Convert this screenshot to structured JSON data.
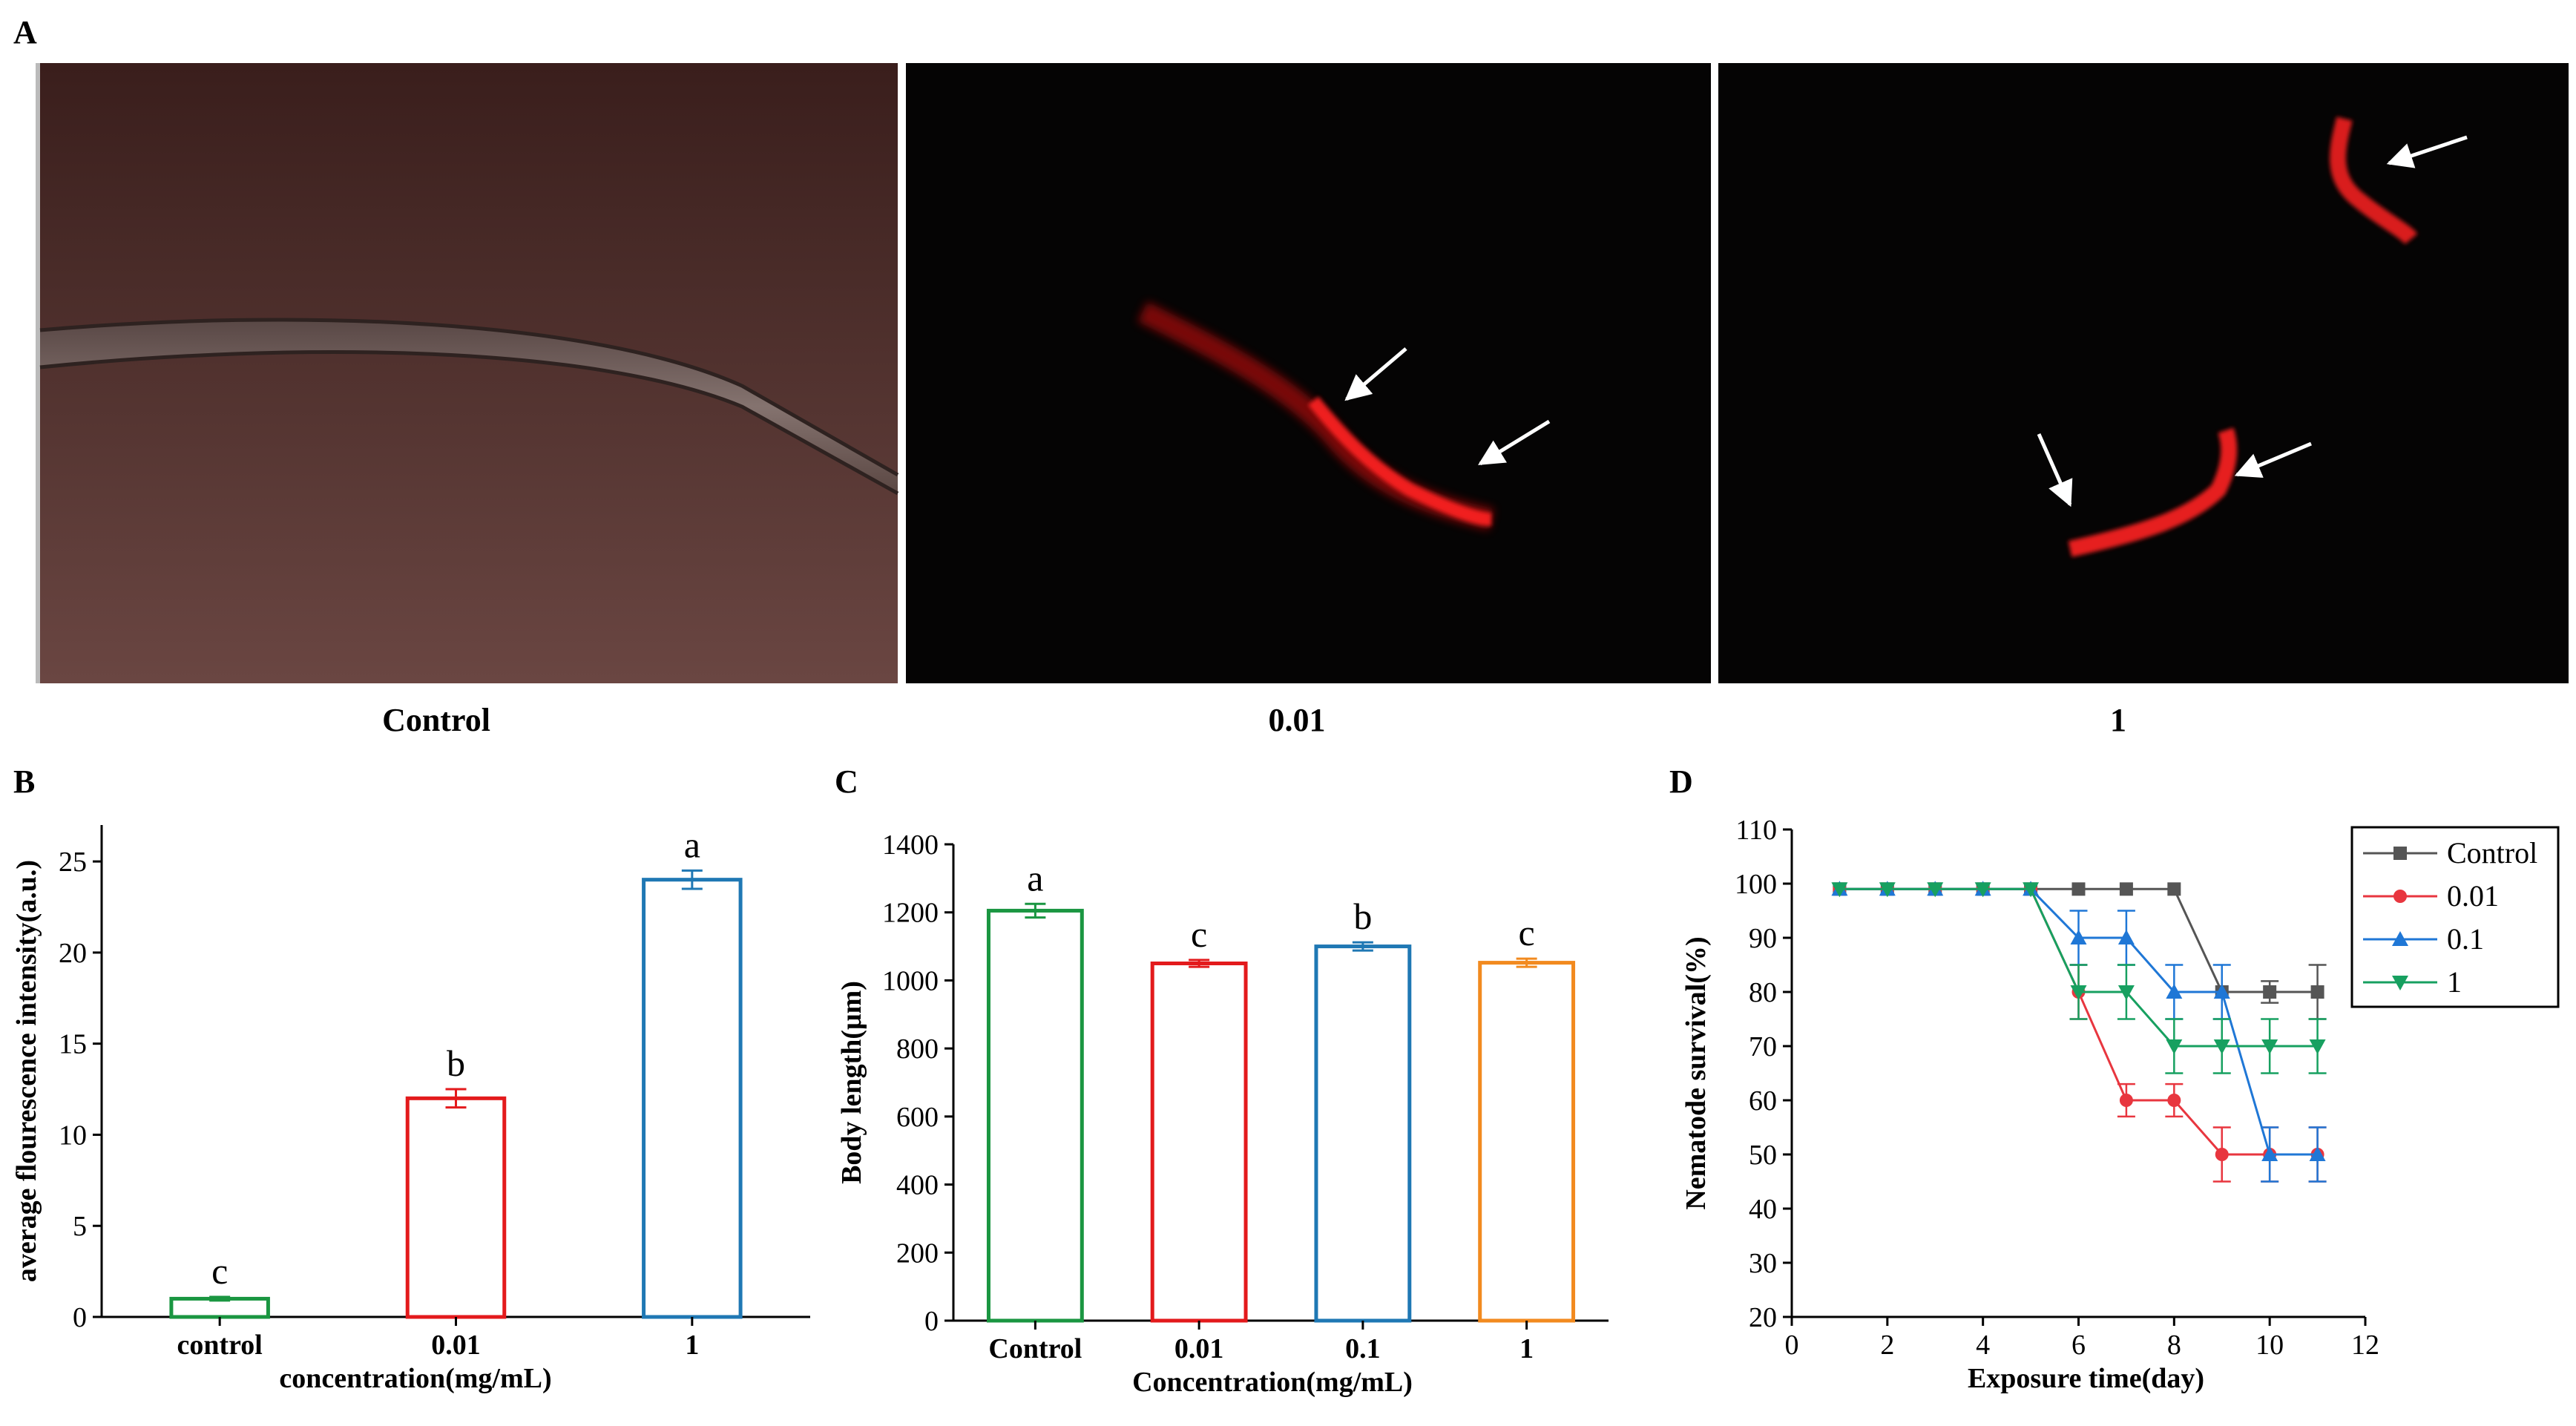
{
  "panel_labels": {
    "a": "A",
    "b": "B",
    "c": "C",
    "d": "D"
  },
  "images": [
    {
      "caption": "Control",
      "style": "brightfield"
    },
    {
      "caption": "0.01",
      "style": "fluorescence"
    },
    {
      "caption": "1",
      "style": "fluorescence"
    }
  ],
  "colors": {
    "black": "#555555",
    "red": "#e8363f",
    "blue": "#1f77d6",
    "green": "#17a060",
    "orange": "#f28a1f",
    "bar_green": "#1a9641",
    "bar_red": "#e31a1c",
    "bar_blue": "#1f78b4",
    "bar_orange": "#f28a1f"
  },
  "chart_data": [
    {
      "type": "bar",
      "panel": "B",
      "categories": [
        "control",
        "0.01",
        "1"
      ],
      "values": [
        1.0,
        12.0,
        24.0
      ],
      "errors": [
        0.1,
        0.5,
        0.5
      ],
      "significance": [
        "c",
        "b",
        "a"
      ],
      "colors": [
        "#1a9641",
        "#e31a1c",
        "#1f78b4"
      ],
      "xlabel": "concentration(mg/mL)",
      "ylabel": "average flourescence intensity(a.u.)",
      "ylim": [
        0,
        27
      ],
      "yticks": [
        0,
        5,
        10,
        15,
        20,
        25
      ]
    },
    {
      "type": "bar",
      "panel": "C",
      "categories": [
        "Control",
        "0.01",
        "0.1",
        "1"
      ],
      "values": [
        1205,
        1050,
        1100,
        1052
      ],
      "errors": [
        20,
        10,
        12,
        12
      ],
      "significance": [
        "a",
        "c",
        "b",
        "c"
      ],
      "colors": [
        "#1a9641",
        "#e31a1c",
        "#1f78b4",
        "#f28a1f"
      ],
      "xlabel": "Concentration(mg/mL)",
      "ylabel": "Body length(μm)",
      "ylim": [
        0,
        1400
      ],
      "yticks": [
        0,
        200,
        400,
        600,
        800,
        1000,
        1200,
        1400
      ]
    },
    {
      "type": "line",
      "panel": "D",
      "x": [
        1,
        2,
        3,
        4,
        5,
        6,
        7,
        8,
        9,
        10,
        11
      ],
      "series": [
        {
          "name": "Control",
          "marker": "square",
          "color": "#555555",
          "values": [
            99,
            99,
            99,
            99,
            99,
            99,
            99,
            99,
            80,
            80,
            80
          ],
          "errors": [
            0,
            0,
            0,
            0,
            0,
            0,
            0,
            0,
            0,
            2,
            5
          ]
        },
        {
          "name": "0.01",
          "marker": "circle",
          "color": "#e8363f",
          "values": [
            99,
            99,
            99,
            99,
            99,
            80,
            60,
            60,
            50,
            50,
            50
          ],
          "errors": [
            0,
            0,
            0,
            0,
            0,
            5,
            3,
            3,
            5,
            5,
            5
          ]
        },
        {
          "name": "0.1",
          "marker": "triangle-up",
          "color": "#1f77d6",
          "values": [
            99,
            99,
            99,
            99,
            99,
            90,
            90,
            80,
            80,
            50,
            50
          ],
          "errors": [
            0,
            0,
            0,
            0,
            0,
            5,
            5,
            5,
            5,
            5,
            5
          ]
        },
        {
          "name": "1",
          "marker": "triangle-down",
          "color": "#17a060",
          "values": [
            99,
            99,
            99,
            99,
            99,
            80,
            80,
            70,
            70,
            70,
            70
          ],
          "errors": [
            0,
            0,
            0,
            0,
            0,
            5,
            5,
            5,
            5,
            5,
            5
          ]
        }
      ],
      "xlabel": "Exposure time(day)",
      "ylabel": "Nematode survival(%)",
      "xlim": [
        0,
        12
      ],
      "ylim": [
        20,
        110
      ],
      "xticks": [
        0,
        2,
        4,
        6,
        8,
        10,
        12
      ],
      "yticks": [
        20,
        30,
        40,
        50,
        60,
        70,
        80,
        90,
        100,
        110
      ],
      "legend_position": "right"
    }
  ]
}
